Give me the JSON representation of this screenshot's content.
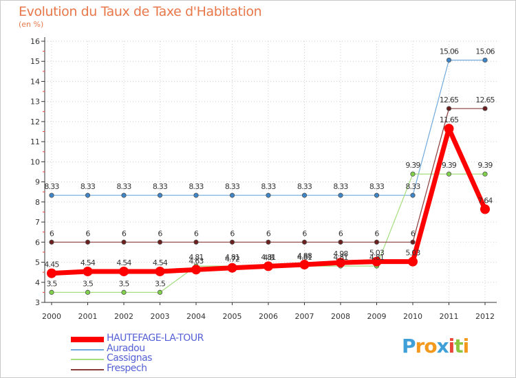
{
  "title": "Evolution du Taux de Taxe d'Habitation",
  "subtitle": "(en %)",
  "brand": {
    "text": "Proxiti",
    "letters": [
      {
        "ch": "P",
        "color": "#3fa0d8"
      },
      {
        "ch": "r",
        "color": "#f39a1e"
      },
      {
        "ch": "o",
        "color": "#f39a1e"
      },
      {
        "ch": "x",
        "color": "#3fa0d8"
      },
      {
        "ch": "i",
        "color": "#e8473a"
      },
      {
        "ch": "t",
        "color": "#8cc63f"
      },
      {
        "ch": "i",
        "color": "#f39a1e"
      }
    ]
  },
  "chart_data": {
    "type": "line",
    "title": "Evolution du Taux de Taxe d'Habitation",
    "ylabel": "(en %)",
    "xlabel": "",
    "x": [
      "2000",
      "2001",
      "2002",
      "2003",
      "2004",
      "2005",
      "2006",
      "2007",
      "2008",
      "2009",
      "2010",
      "2011",
      "2012"
    ],
    "ylim": [
      3,
      16
    ],
    "yticks": [
      3,
      4,
      5,
      6,
      7,
      8,
      9,
      10,
      11,
      12,
      13,
      14,
      15,
      16
    ],
    "legend_position": "bottom-left",
    "series": [
      {
        "name": "Auradou",
        "color": "#6fa8dc",
        "marker_color": "#3d85c6",
        "width": 1.2,
        "values": [
          8.33,
          8.33,
          8.33,
          8.33,
          8.33,
          8.33,
          8.33,
          8.33,
          8.33,
          8.33,
          8.33,
          15.06,
          15.06
        ],
        "labels": [
          "8.33",
          "8.33",
          "8.33",
          "8.33",
          "8.33",
          "8.33",
          "8.33",
          "8.33",
          "8.33",
          "8.33",
          "8.33",
          "15.06",
          "15.06"
        ]
      },
      {
        "name": "Cassignas",
        "color": "#a4de7e",
        "marker_color": "#7fd14a",
        "width": 1.2,
        "values": [
          3.5,
          3.5,
          3.5,
          3.5,
          4.81,
          4.81,
          4.81,
          4.81,
          4.81,
          4.81,
          9.39,
          9.39,
          9.39
        ],
        "labels": [
          "3.5",
          "3.5",
          "3.5",
          "3.5",
          "4.81",
          "4.81",
          "4.81",
          "4.81",
          "4.81",
          "4.81",
          "9.39",
          "9.39",
          "9.39"
        ]
      },
      {
        "name": "Frespech",
        "color": "#8b3a3a",
        "marker_color": "#6b1e1e",
        "width": 1.2,
        "values": [
          6,
          6,
          6,
          6,
          6,
          6,
          6,
          6,
          6,
          6,
          6,
          12.65,
          12.65
        ],
        "labels": [
          "6",
          "6",
          "6",
          "6",
          "6",
          "6",
          "6",
          "6",
          "6",
          "6",
          "6",
          "12.65",
          "12.65"
        ]
      },
      {
        "name": "HAUTEFAGE-LA-TOUR",
        "color": "#ff0000",
        "marker_color": "#ff0000",
        "width": 7,
        "values": [
          4.45,
          4.54,
          4.54,
          4.54,
          4.63,
          4.72,
          4.8,
          4.88,
          4.98,
          5.03,
          5.03,
          11.65,
          7.64
        ],
        "labels": [
          "4.45",
          "4.54",
          "4.54",
          "4.54",
          "4.63",
          "4.72",
          "4.8",
          "4.88",
          "4.98",
          "5.03",
          "5.03",
          "11.65",
          "7.64"
        ]
      }
    ],
    "legend": [
      "HAUTEFAGE-LA-TOUR",
      "Auradou",
      "Cassignas",
      "Frespech"
    ]
  }
}
